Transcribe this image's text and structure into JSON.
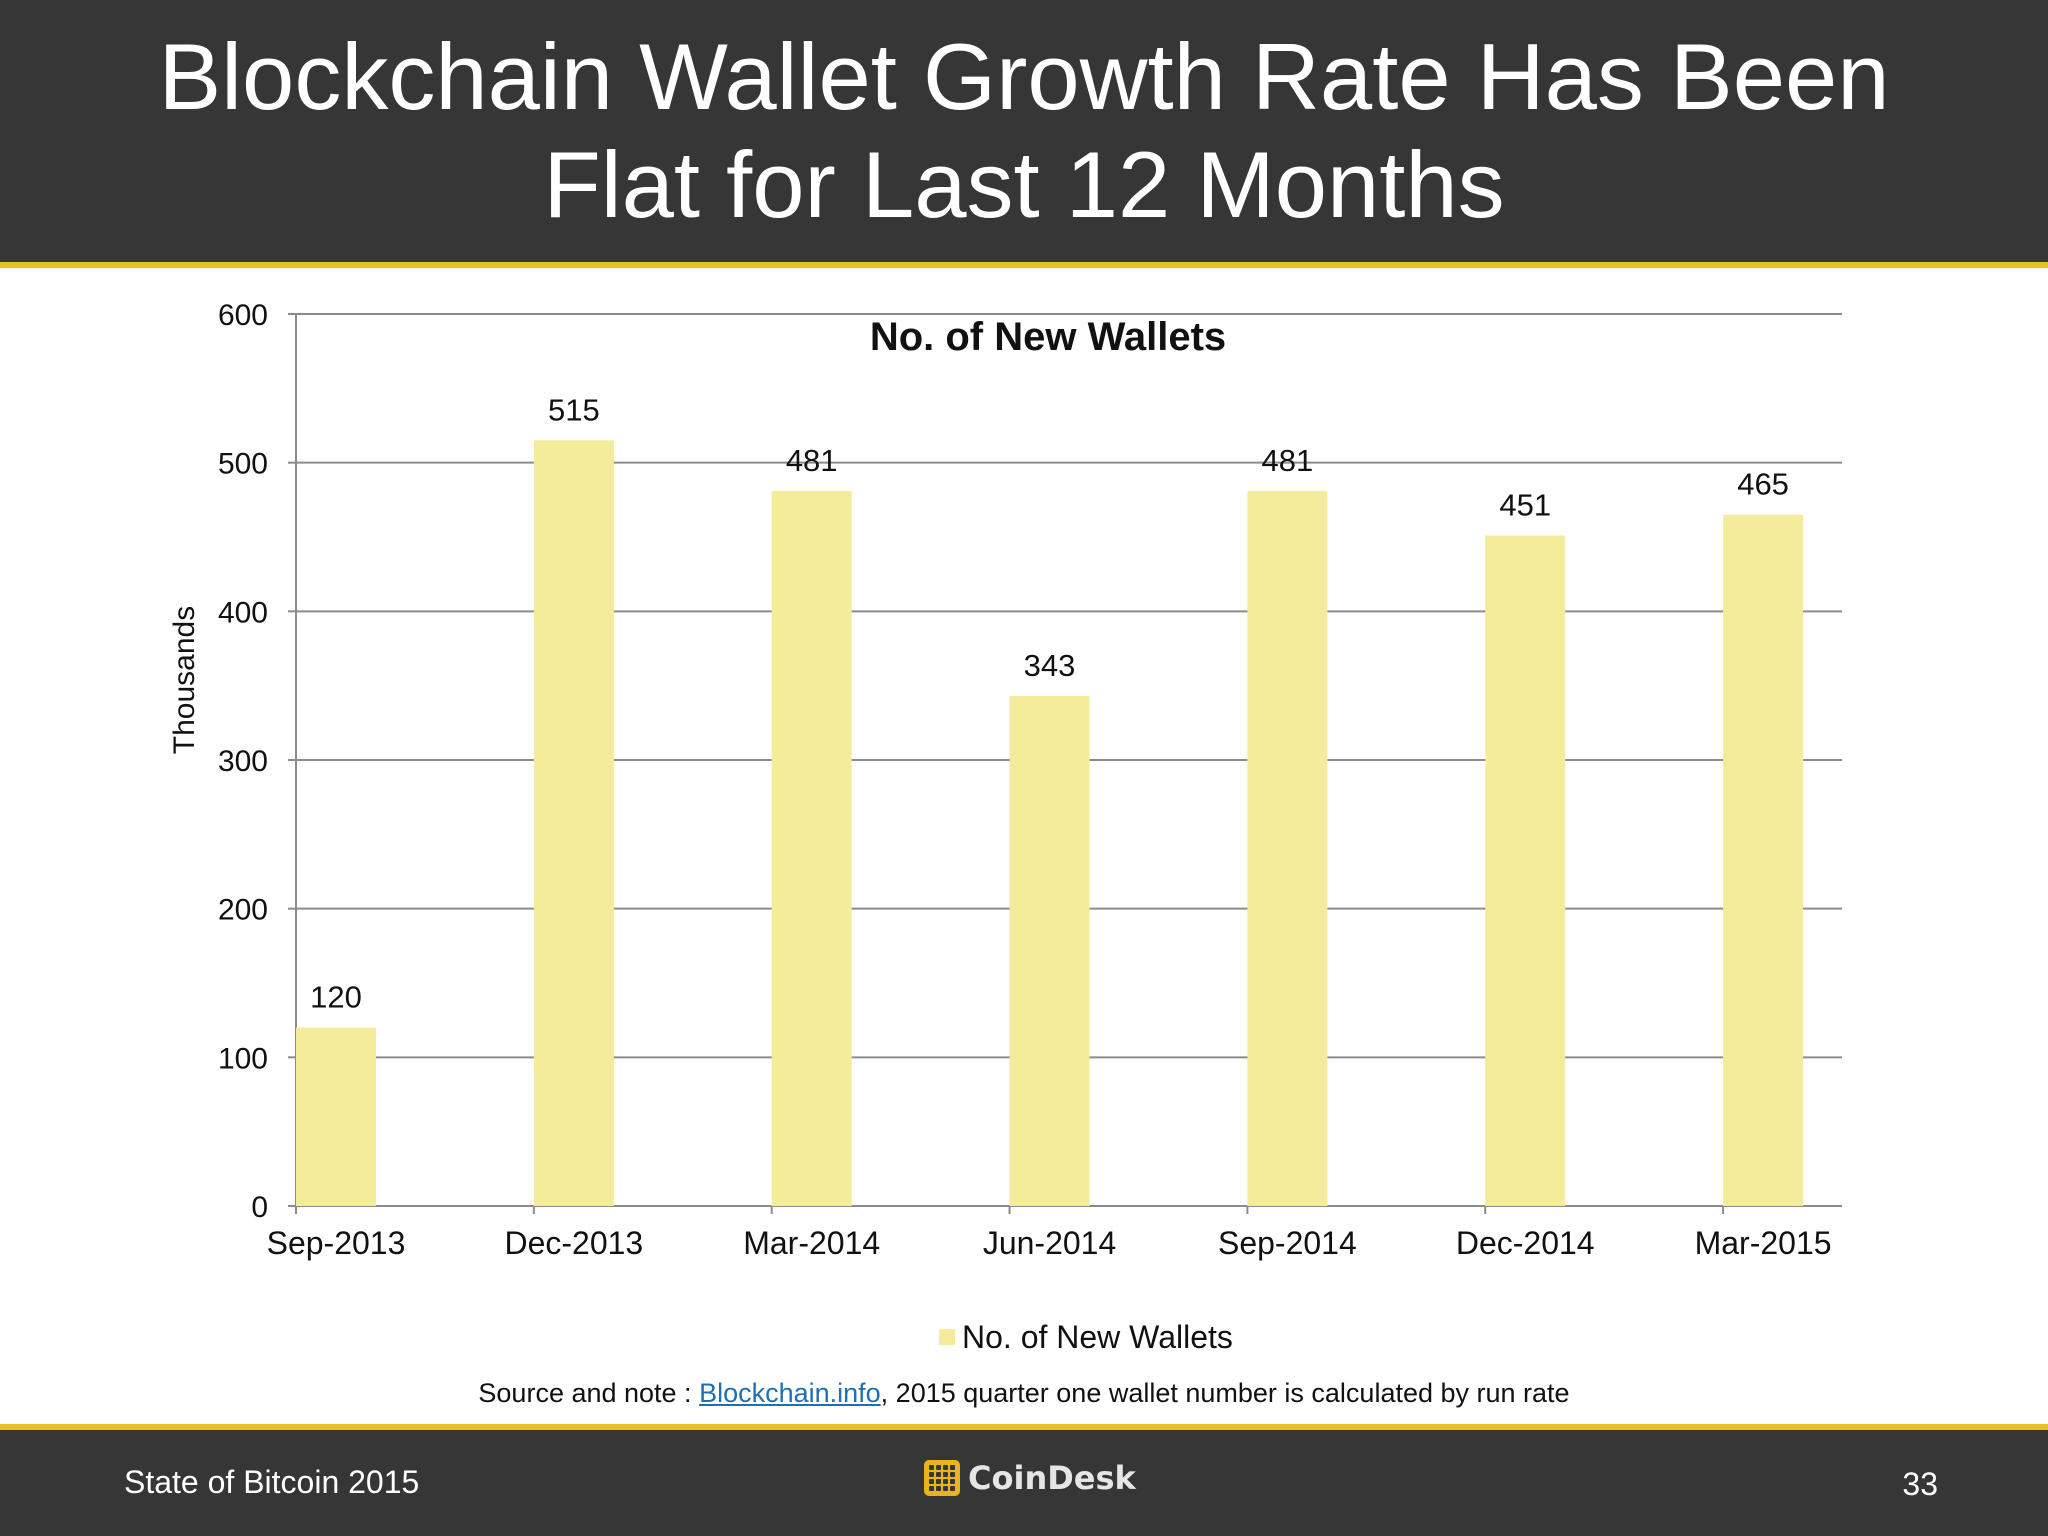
{
  "slide": {
    "title_line1": "Blockchain Wallet Growth Rate Has Been",
    "title_line2": "Flat for Last 12 Months",
    "source_prefix": "Source and note : ",
    "source_link": "Blockchain.info",
    "source_suffix": ", 2015 quarter one wallet number is calculated by run rate",
    "footer_left": "State of Bitcoin 2015",
    "footer_brand": "CoinDesk",
    "page_number": "33"
  },
  "colors": {
    "header_bg": "#363636",
    "accent": "#e8c21e",
    "bar": "#f4ec9a",
    "grid": "#8c8c8c"
  },
  "chart_data": {
    "type": "bar",
    "title": "No. of New Wallets",
    "ylabel": "Thousands",
    "xlabel": "",
    "categories": [
      "Sep-2013",
      "Dec-2013",
      "Mar-2014",
      "Jun-2014",
      "Sep-2014",
      "Dec-2014",
      "Mar-2015"
    ],
    "series": [
      {
        "name": "No. of New Wallets",
        "values": [
          120,
          515,
          481,
          343,
          481,
          451,
          465
        ]
      }
    ],
    "ylim": [
      0,
      600
    ],
    "yticks": [
      0,
      100,
      200,
      300,
      400,
      500,
      600
    ],
    "grid": true,
    "legend": "bottom-center"
  }
}
